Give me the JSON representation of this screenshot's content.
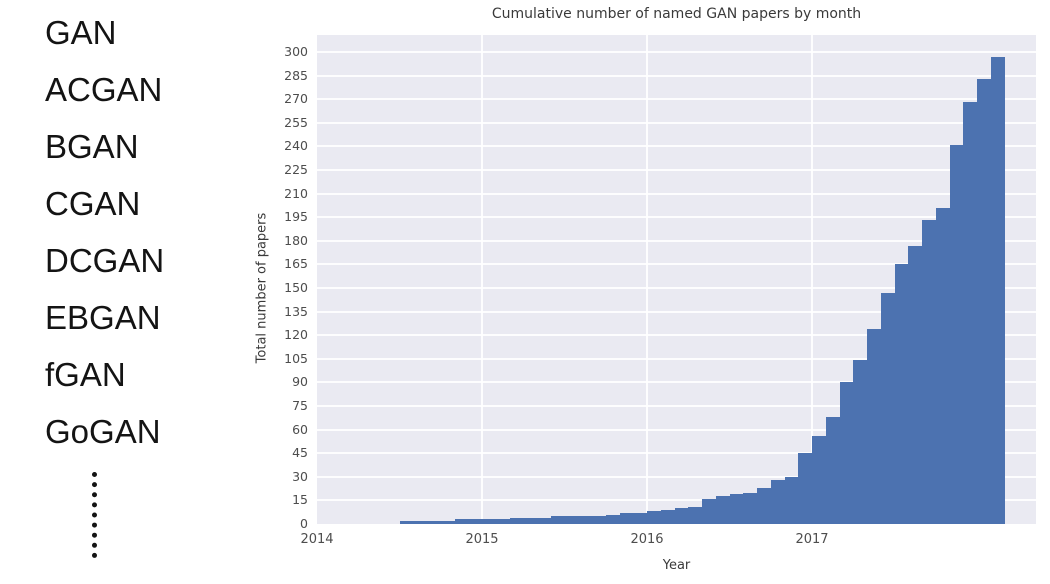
{
  "sidebar": {
    "items": [
      "GAN",
      "ACGAN",
      "BGAN",
      "CGAN",
      "DCGAN",
      "EBGAN",
      "fGAN",
      "GoGAN"
    ],
    "ellipsis": "⋮"
  },
  "chart_data": {
    "type": "bar",
    "title": "Cumulative number of named GAN papers by month",
    "xlabel": "Year",
    "ylabel": "Total number of papers",
    "legend": null,
    "grid": true,
    "plot_bg": "#eaeaf2",
    "bar_color": "#4c72b0",
    "grid_color": "#ffffff",
    "x_tick_labels": [
      "2014",
      "2015",
      "2016",
      "2017"
    ],
    "y_ticks": [
      0,
      15,
      30,
      45,
      60,
      75,
      90,
      105,
      120,
      135,
      150,
      165,
      180,
      195,
      210,
      225,
      240,
      255,
      270,
      285,
      300
    ],
    "ylim": [
      0,
      311
    ],
    "xlim_years": [
      2014.0,
      2018.36
    ],
    "months": [
      "2014-07",
      "2014-08",
      "2014-09",
      "2014-10",
      "2014-11",
      "2014-12",
      "2015-01",
      "2015-02",
      "2015-03",
      "2015-04",
      "2015-05",
      "2015-06",
      "2015-07",
      "2015-08",
      "2015-09",
      "2015-10",
      "2015-11",
      "2015-12",
      "2016-01",
      "2016-02",
      "2016-03",
      "2016-04",
      "2016-05",
      "2016-06",
      "2016-07",
      "2016-08",
      "2016-09",
      "2016-10",
      "2016-11",
      "2016-12",
      "2017-01",
      "2017-02",
      "2017-03",
      "2017-04",
      "2017-05",
      "2017-06",
      "2017-07",
      "2017-08",
      "2017-09",
      "2017-10",
      "2017-11",
      "2017-12",
      "2018-01",
      "2018-02"
    ],
    "values": [
      2,
      2,
      2,
      2,
      3,
      3,
      3,
      3,
      4,
      4,
      4,
      5,
      5,
      5,
      5,
      6,
      7,
      7,
      8,
      9,
      10,
      11,
      16,
      18,
      19,
      20,
      23,
      28,
      30,
      45,
      56,
      68,
      90,
      104,
      124,
      147,
      165,
      177,
      193,
      201,
      241,
      268,
      283,
      297
    ]
  }
}
